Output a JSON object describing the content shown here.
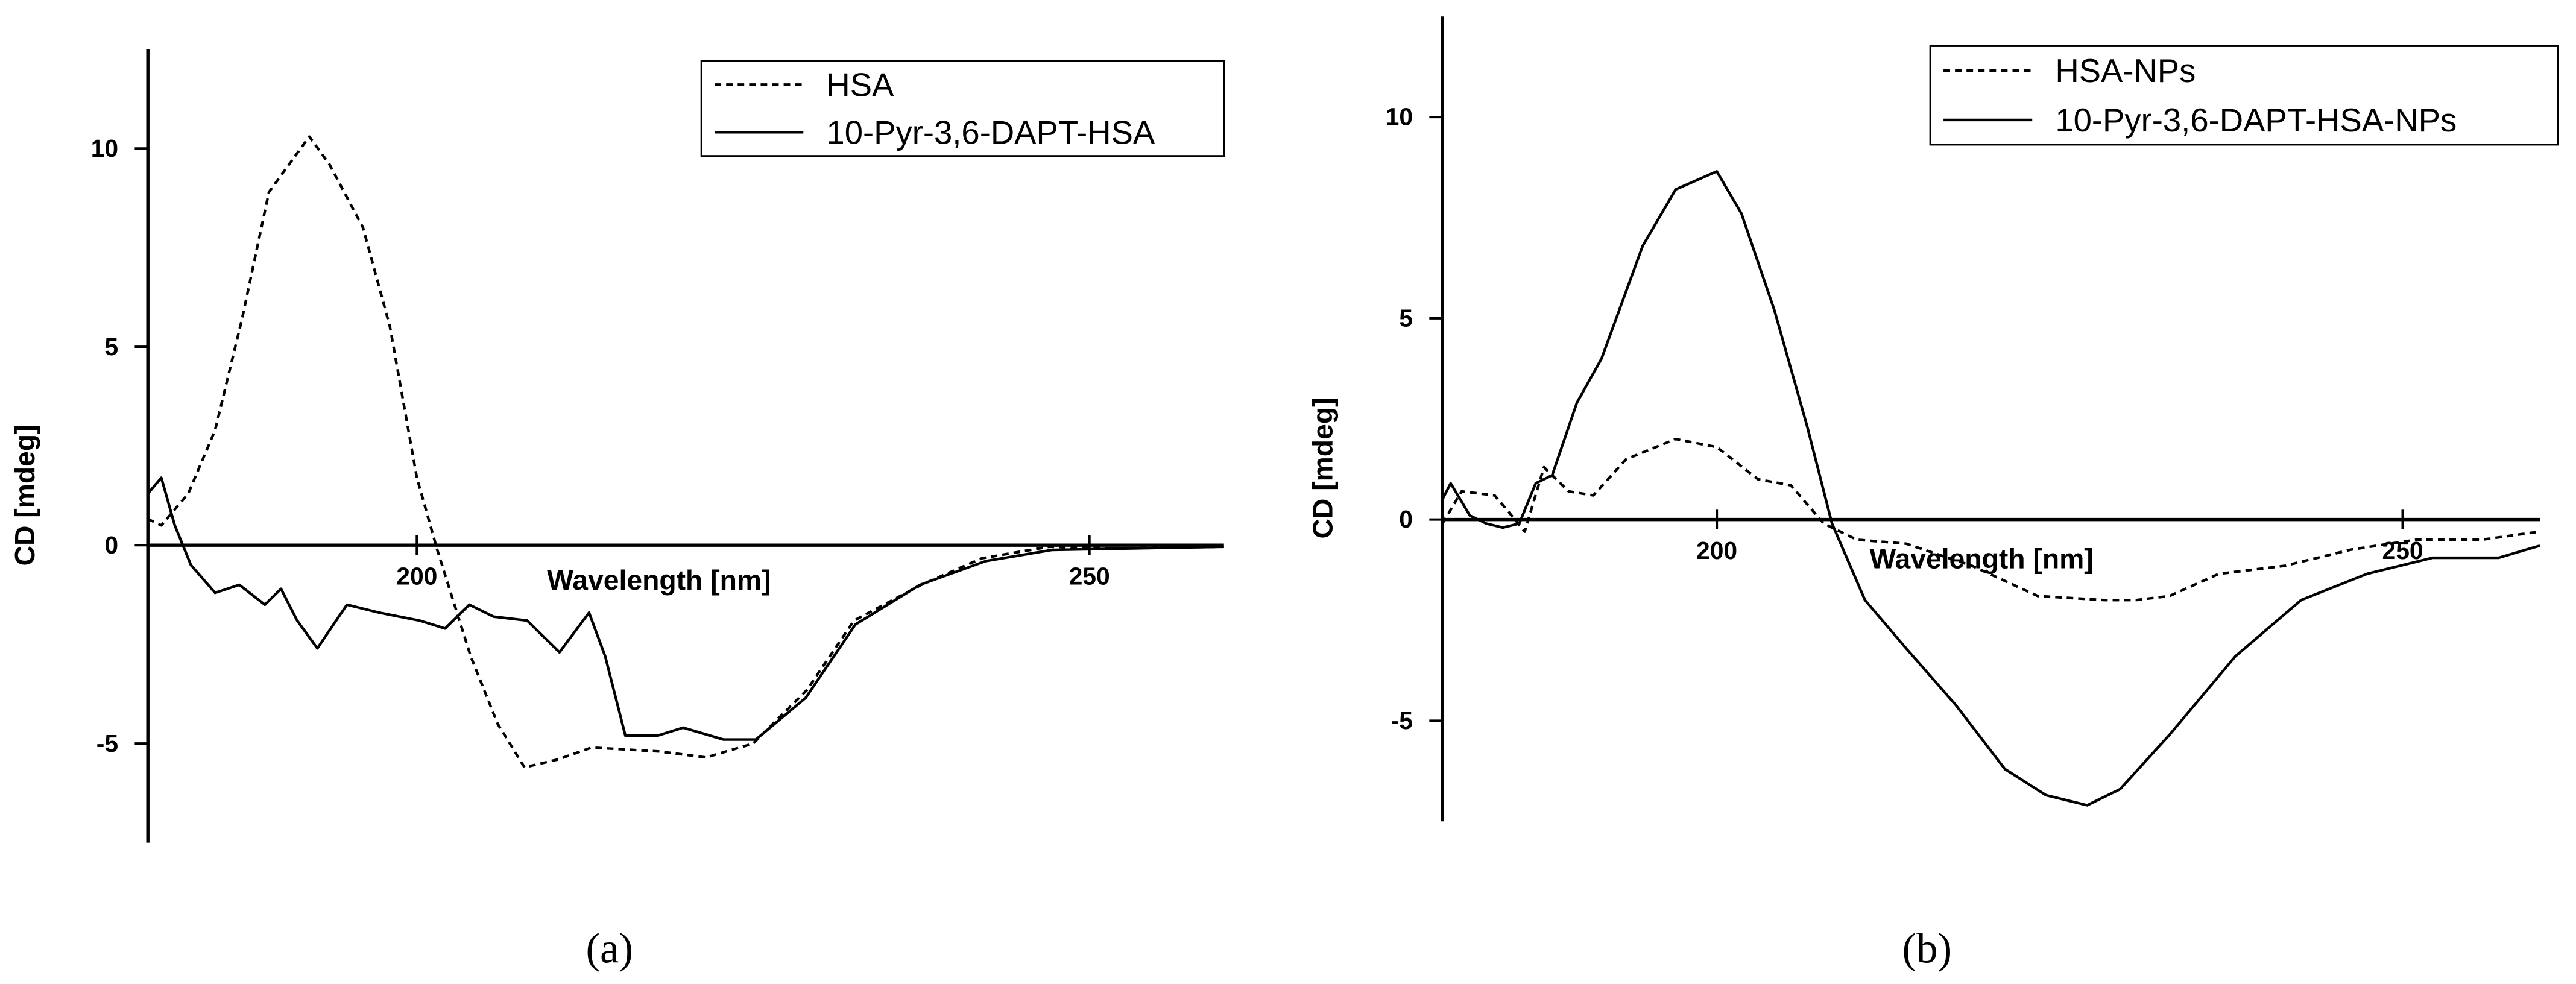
{
  "chart_data": [
    {
      "type": "line",
      "caption": "(a)",
      "xlabel": "Wavelength [nm]",
      "ylabel": "CD [mdeg]",
      "xlim": [
        180,
        260
      ],
      "ylim": [
        -7.5,
        12.5
      ],
      "xticks": [
        200,
        250
      ],
      "yticks": [
        -5,
        0,
        5,
        10
      ],
      "legend": "upper right",
      "series": [
        {
          "name": "HSA",
          "color": "#000000",
          "line_style": "dashed",
          "x": [
            180,
            181,
            183,
            185,
            187,
            189,
            192,
            193.5,
            196,
            198,
            200,
            201.5,
            204,
            206,
            208,
            210.5,
            213,
            218,
            221.5,
            225,
            229,
            232.5,
            237.5,
            242,
            247,
            252,
            260
          ],
          "values": [
            0.66,
            0.5,
            1.3,
            2.9,
            5.7,
            8.9,
            10.3,
            9.6,
            8,
            5.5,
            1.7,
            -0.1,
            -2.8,
            -4.5,
            -5.6,
            -5.4,
            -5.1,
            -5.2,
            -5.35,
            -5,
            -3.65,
            -1.9,
            -1,
            -0.33,
            -0.04,
            -0.08,
            -0.04
          ]
        },
        {
          "name": "10-Pyr-3,6-DAPT-HSA",
          "color": "#000000",
          "line_style": "solid",
          "x": [
            180,
            181,
            182,
            183.2,
            185,
            186.8,
            188.7,
            189.9,
            191.1,
            192.6,
            194.8,
            197.2,
            200.2,
            202.1,
            203.9,
            205.7,
            208.2,
            210.6,
            212.8,
            214,
            215.5,
            217.9,
            219.8,
            222.8,
            225.2,
            228.9,
            232.6,
            237.4,
            242.3,
            247.2,
            260
          ],
          "values": [
            1.3,
            1.7,
            0.5,
            -0.5,
            -1.2,
            -1,
            -1.5,
            -1.1,
            -1.9,
            -2.6,
            -1.5,
            -1.7,
            -1.9,
            -2.1,
            -1.5,
            -1.8,
            -1.9,
            -2.7,
            -1.7,
            -2.8,
            -4.8,
            -4.8,
            -4.6,
            -4.9,
            -4.9,
            -3.85,
            -2,
            -1,
            -0.4,
            -0.12,
            -0.04
          ]
        }
      ]
    },
    {
      "type": "line",
      "caption": "(b)",
      "xlabel": "Wavelength [nm]",
      "ylabel": "CD [mdeg]",
      "xlim": [
        180,
        260
      ],
      "ylim": [
        -7.5,
        12.5
      ],
      "xticks": [
        200,
        250
      ],
      "yticks": [
        -5,
        0,
        5,
        10
      ],
      "legend": "upper right",
      "series": [
        {
          "name": "HSA-NPs",
          "color": "#000000",
          "line_style": "dashed",
          "x": [
            180,
            181.4,
            183.8,
            184.8,
            186,
            187.4,
            189.2,
            191,
            193.4,
            197,
            200,
            203,
            205.4,
            207.8,
            210.2,
            213.8,
            218.6,
            223.4,
            228.2,
            230.6,
            233,
            236.6,
            241.4,
            246.2,
            251,
            255.8,
            260
          ],
          "values": [
            -0.1,
            0.7,
            0.6,
            0.2,
            -0.3,
            1.3,
            0.7,
            0.6,
            1.5,
            2,
            1.8,
            1,
            0.85,
            -0.1,
            -0.5,
            -0.6,
            -1.15,
            -1.9,
            -2,
            -2,
            -1.9,
            -1.35,
            -1.15,
            -0.75,
            -0.5,
            -0.5,
            -0.3
          ]
        },
        {
          "name": "10-Pyr-3,6-DAPT-HSA-NPs",
          "color": "#000000",
          "line_style": "solid",
          "x": [
            180,
            180.6,
            182,
            183.2,
            184.4,
            185.6,
            186.8,
            188,
            189.8,
            191.6,
            194.6,
            197,
            200,
            201.8,
            204.2,
            206.6,
            208.4,
            210.8,
            213.8,
            217.4,
            221,
            224,
            227,
            229.4,
            233,
            237.8,
            242.6,
            247.4,
            252.2,
            257,
            260
          ],
          "values": [
            0.5,
            0.9,
            0.1,
            -0.1,
            -0.2,
            -0.1,
            0.9,
            1.1,
            2.9,
            4,
            6.8,
            8.2,
            8.65,
            7.6,
            5.2,
            2.3,
            -0.1,
            -2,
            -3.2,
            -4.6,
            -6.2,
            -6.85,
            -7.1,
            -6.7,
            -5.35,
            -3.4,
            -2,
            -1.35,
            -0.95,
            -0.95,
            -0.65
          ]
        }
      ]
    }
  ]
}
